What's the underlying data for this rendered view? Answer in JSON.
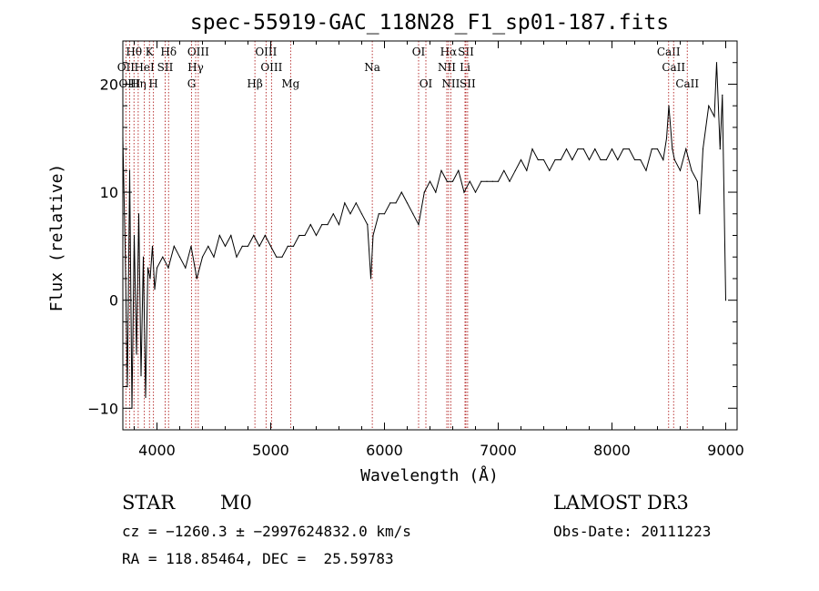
{
  "chart_data": {
    "type": "line",
    "title": "spec-55919-GAC_118N28_F1_sp01-187.fits",
    "xlabel": "Wavelength (Å)",
    "ylabel": "Flux (relative)",
    "xlim": [
      3700,
      9100
    ],
    "ylim": [
      -12,
      24
    ],
    "xticks": [
      4000,
      5000,
      6000,
      7000,
      8000,
      9000
    ],
    "yticks": [
      -10,
      0,
      10,
      20
    ],
    "xtick_labels": [
      "4000",
      "5000",
      "6000",
      "7000",
      "8000",
      "9000"
    ],
    "ytick_labels": [
      "−10",
      "0",
      "10",
      "20"
    ],
    "series": [
      {
        "name": "spectrum",
        "x": [
          3700,
          3720,
          3740,
          3760,
          3780,
          3800,
          3820,
          3840,
          3860,
          3880,
          3900,
          3920,
          3940,
          3960,
          3980,
          4000,
          4050,
          4100,
          4150,
          4200,
          4250,
          4300,
          4350,
          4400,
          4450,
          4500,
          4550,
          4600,
          4650,
          4700,
          4750,
          4800,
          4850,
          4900,
          4950,
          5000,
          5050,
          5100,
          5150,
          5200,
          5250,
          5300,
          5350,
          5400,
          5450,
          5500,
          5550,
          5600,
          5650,
          5700,
          5750,
          5800,
          5850,
          5880,
          5900,
          5950,
          6000,
          6050,
          6100,
          6150,
          6200,
          6250,
          6300,
          6350,
          6400,
          6450,
          6500,
          6550,
          6600,
          6650,
          6700,
          6750,
          6800,
          6850,
          6900,
          6950,
          7000,
          7050,
          7100,
          7150,
          7200,
          7250,
          7300,
          7350,
          7400,
          7450,
          7500,
          7550,
          7600,
          7650,
          7700,
          7750,
          7800,
          7850,
          7900,
          7950,
          8000,
          8050,
          8100,
          8150,
          8200,
          8250,
          8300,
          8350,
          8400,
          8450,
          8480,
          8500,
          8530,
          8550,
          8600,
          8650,
          8700,
          8750,
          8770,
          8800,
          8850,
          8900,
          8920,
          8950,
          8970,
          9000
        ],
        "y": [
          15,
          5,
          -8,
          12,
          -10,
          6,
          -5,
          8,
          -7,
          4,
          -9,
          3,
          2,
          5,
          1,
          3,
          4,
          3,
          5,
          4,
          3,
          5,
          2,
          4,
          5,
          4,
          6,
          5,
          6,
          4,
          5,
          5,
          6,
          5,
          6,
          5,
          4,
          4,
          5,
          5,
          6,
          6,
          7,
          6,
          7,
          7,
          8,
          7,
          9,
          8,
          9,
          8,
          7,
          2,
          6,
          8,
          8,
          9,
          9,
          10,
          9,
          8,
          7,
          10,
          11,
          10,
          12,
          11,
          11,
          12,
          10,
          11,
          10,
          11,
          11,
          11,
          11,
          12,
          11,
          12,
          13,
          12,
          14,
          13,
          13,
          12,
          13,
          13,
          14,
          13,
          14,
          14,
          13,
          14,
          13,
          13,
          14,
          13,
          14,
          14,
          13,
          13,
          12,
          14,
          14,
          13,
          15,
          18,
          14,
          13,
          12,
          14,
          12,
          11,
          8,
          14,
          18,
          17,
          22,
          14,
          19,
          0
        ]
      }
    ],
    "lines": [
      {
        "name": "Hθ",
        "w": 3798,
        "row": 1
      },
      {
        "name": "OII",
        "w": 3727,
        "row": 2
      },
      {
        "name": "OIII",
        "w": 3760,
        "row": 3
      },
      {
        "name": "Hη",
        "w": 3835,
        "row": 3
      },
      {
        "name": "HeI",
        "w": 3889,
        "row": 2
      },
      {
        "name": "K",
        "w": 3934,
        "row": 1
      },
      {
        "name": "H",
        "w": 3969,
        "row": 3
      },
      {
        "name": "SII",
        "w": 4072,
        "row": 2
      },
      {
        "name": "Hδ",
        "w": 4102,
        "row": 1
      },
      {
        "name": "OIII",
        "w": 4363,
        "row": 1
      },
      {
        "name": "Hγ",
        "w": 4340,
        "row": 2
      },
      {
        "name": "G",
        "w": 4304,
        "row": 3
      },
      {
        "name": "OIII",
        "w": 4959,
        "row": 1
      },
      {
        "name": "OIII",
        "w": 5007,
        "row": 2
      },
      {
        "name": "Hβ",
        "w": 4861,
        "row": 3
      },
      {
        "name": "Mg",
        "w": 5175,
        "row": 3
      },
      {
        "name": "Na",
        "w": 5893,
        "row": 2
      },
      {
        "name": "OI",
        "w": 6300,
        "row": 1
      },
      {
        "name": "OI",
        "w": 6364,
        "row": 3
      },
      {
        "name": "Hα",
        "w": 6563,
        "row": 1
      },
      {
        "name": "NII",
        "w": 6548,
        "row": 2
      },
      {
        "name": "NII",
        "w": 6583,
        "row": 3
      },
      {
        "name": "SII",
        "w": 6716,
        "row": 1
      },
      {
        "name": "Li",
        "w": 6708,
        "row": 2
      },
      {
        "name": "SII",
        "w": 6731,
        "row": 3
      },
      {
        "name": "CaII",
        "w": 8498,
        "row": 1
      },
      {
        "name": "CaII",
        "w": 8542,
        "row": 2
      },
      {
        "name": "CaII",
        "w": 8662,
        "row": 3
      }
    ]
  },
  "info": {
    "class": "STAR",
    "subclass": "M0",
    "survey": "LAMOST DR3",
    "cz": "cz = −1260.3 ± −2997624832.0 km/s",
    "obs_date": "Obs-Date: 20111223",
    "radec": "RA = 118.85464, DEC =  25.59783"
  }
}
